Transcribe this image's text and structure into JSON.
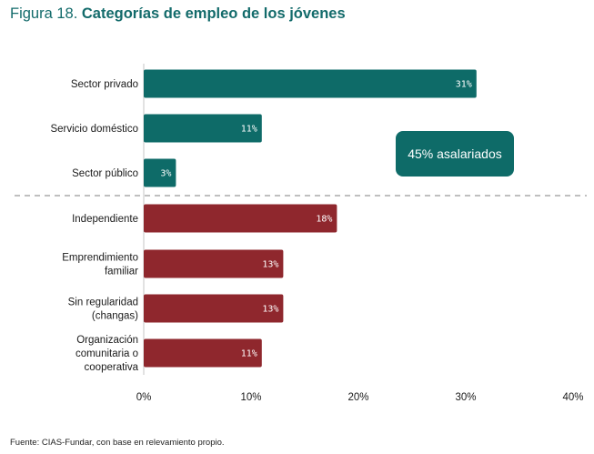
{
  "figure": {
    "number_label": "Figura 18.",
    "title": "Categorías de empleo de los jóvenes",
    "source": "Fuente: CIAS-Fundar, con base en relevamiento propio."
  },
  "colors": {
    "salaried": "#0e6b68",
    "non_salaried": "#8f272d",
    "title": "#136b6b",
    "divider": "#999999"
  },
  "chart_data": {
    "type": "bar",
    "orientation": "horizontal",
    "title": "Categorías de empleo de los jóvenes",
    "xlabel": "",
    "ylabel": "",
    "xlim": [
      0,
      40
    ],
    "x_ticks": [
      "0%",
      "10%",
      "20%",
      "30%",
      "40%"
    ],
    "x_tick_values": [
      0,
      10,
      20,
      30,
      40
    ],
    "grid": false,
    "categories": [
      [
        "Sector privado"
      ],
      [
        "Servicio doméstico"
      ],
      [
        "Sector público"
      ],
      [
        "Independiente"
      ],
      [
        "Emprendimiento",
        "familiar"
      ],
      [
        "Sin regularidad",
        "(changas)"
      ],
      [
        "Organización",
        "comunitaria o",
        "cooperativa"
      ]
    ],
    "values": [
      31,
      11,
      3,
      18,
      13,
      13,
      11
    ],
    "value_labels": [
      "31%",
      "11%",
      "3%",
      "18%",
      "13%",
      "13%",
      "11%"
    ],
    "groups": [
      "salaried",
      "salaried",
      "salaried",
      "non_salaried",
      "non_salaried",
      "non_salaried",
      "non_salaried"
    ],
    "annotation": "45% asalariados",
    "divider_after_index": 2
  }
}
